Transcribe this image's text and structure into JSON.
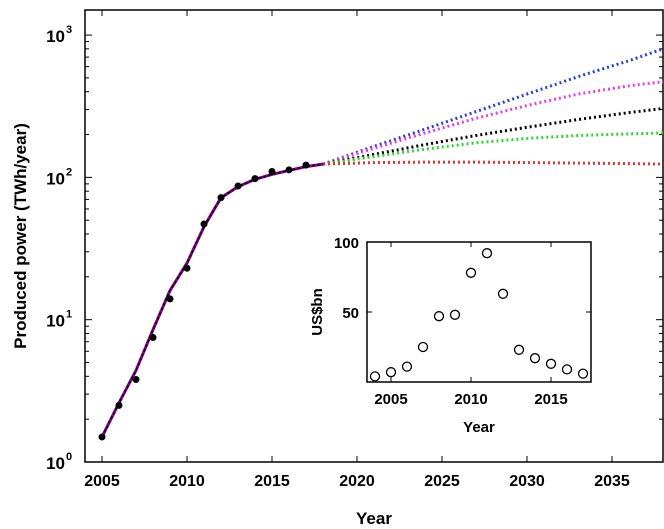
{
  "chart_data": [
    {
      "type": "line",
      "title": "",
      "xlabel": "Year",
      "ylabel": "Produced power (TWh/year)",
      "x_scale": "linear",
      "y_scale": "log",
      "xlim": [
        2004,
        2038
      ],
      "ylim": [
        1,
        1500
      ],
      "x_ticks": [
        2005,
        2010,
        2015,
        2020,
        2025,
        2030,
        2035
      ],
      "x_tick_labels": [
        "2005",
        "2010",
        "2015",
        "2020",
        "2025",
        "2030",
        "2035"
      ],
      "y_ticks": [
        1,
        10,
        100,
        1000
      ],
      "y_tick_labels": [
        {
          "base": "10",
          "exp": "0"
        },
        {
          "base": "10",
          "exp": "1"
        },
        {
          "base": "10",
          "exp": "2"
        },
        {
          "base": "10",
          "exp": "3"
        }
      ],
      "grid": false,
      "observed": {
        "marker": "filled-circle",
        "color": "#000000",
        "x": [
          2005,
          2006,
          2007,
          2008,
          2009,
          2010,
          2011,
          2012,
          2013,
          2014,
          2015,
          2016,
          2017
        ],
        "y": [
          1.5,
          2.5,
          3.8,
          7.5,
          14,
          23,
          47,
          72,
          87,
          98,
          110,
          113,
          122
        ]
      },
      "fitted": {
        "style": "solid",
        "colors": [
          "#000000",
          "#8b008b"
        ],
        "x": [
          2005,
          2006,
          2007,
          2008,
          2009,
          2010,
          2011,
          2012,
          2013,
          2014,
          2015,
          2016,
          2017,
          2018
        ],
        "y": [
          1.5,
          2.6,
          4.4,
          8.5,
          16,
          25,
          45,
          72,
          86,
          97,
          105,
          112,
          119,
          124
        ]
      },
      "projections": [
        {
          "color": "#2a3fd8",
          "style": "dotted",
          "x": [
            2018,
            2021,
            2024,
            2027,
            2030,
            2033,
            2036,
            2038
          ],
          "y": [
            124,
            165,
            218,
            290,
            385,
            510,
            660,
            800
          ]
        },
        {
          "color": "#e63ee6",
          "style": "dotted",
          "x": [
            2018,
            2021,
            2024,
            2027,
            2030,
            2033,
            2036,
            2038
          ],
          "y": [
            124,
            160,
            205,
            260,
            320,
            385,
            440,
            470
          ]
        },
        {
          "color": "#000000",
          "style": "dotted",
          "x": [
            2018,
            2021,
            2024,
            2027,
            2030,
            2033,
            2036,
            2038
          ],
          "y": [
            124,
            145,
            170,
            197,
            225,
            255,
            285,
            305
          ]
        },
        {
          "color": "#2ed62e",
          "style": "dotted",
          "x": [
            2018,
            2021,
            2024,
            2027,
            2030,
            2033,
            2036,
            2038
          ],
          "y": [
            124,
            140,
            158,
            175,
            188,
            197,
            202,
            205
          ]
        },
        {
          "color": "#e63030",
          "style": "dotted",
          "x": [
            2018,
            2021,
            2024,
            2027,
            2030,
            2033,
            2036,
            2038
          ],
          "y": [
            124,
            127,
            128,
            128,
            127,
            126,
            125,
            124
          ]
        }
      ]
    },
    {
      "type": "scatter",
      "title": "",
      "xlabel": "Year",
      "ylabel": "US$bn",
      "xlim": [
        2003.5,
        2017.5
      ],
      "ylim": [
        0,
        100
      ],
      "x_ticks": [
        2005,
        2010,
        2015
      ],
      "x_tick_labels": [
        "2005",
        "2010",
        "2015"
      ],
      "y_ticks": [
        50,
        100
      ],
      "y_tick_labels": [
        "50",
        "100"
      ],
      "grid": false,
      "marker": "open-circle",
      "x": [
        2004,
        2005,
        2006,
        2007,
        2008,
        2009,
        2010,
        2011,
        2012,
        2013,
        2014,
        2015,
        2016,
        2017
      ],
      "y": [
        4,
        7,
        11,
        25,
        47,
        48,
        78,
        92,
        63,
        23,
        17,
        13,
        9,
        6
      ]
    }
  ]
}
